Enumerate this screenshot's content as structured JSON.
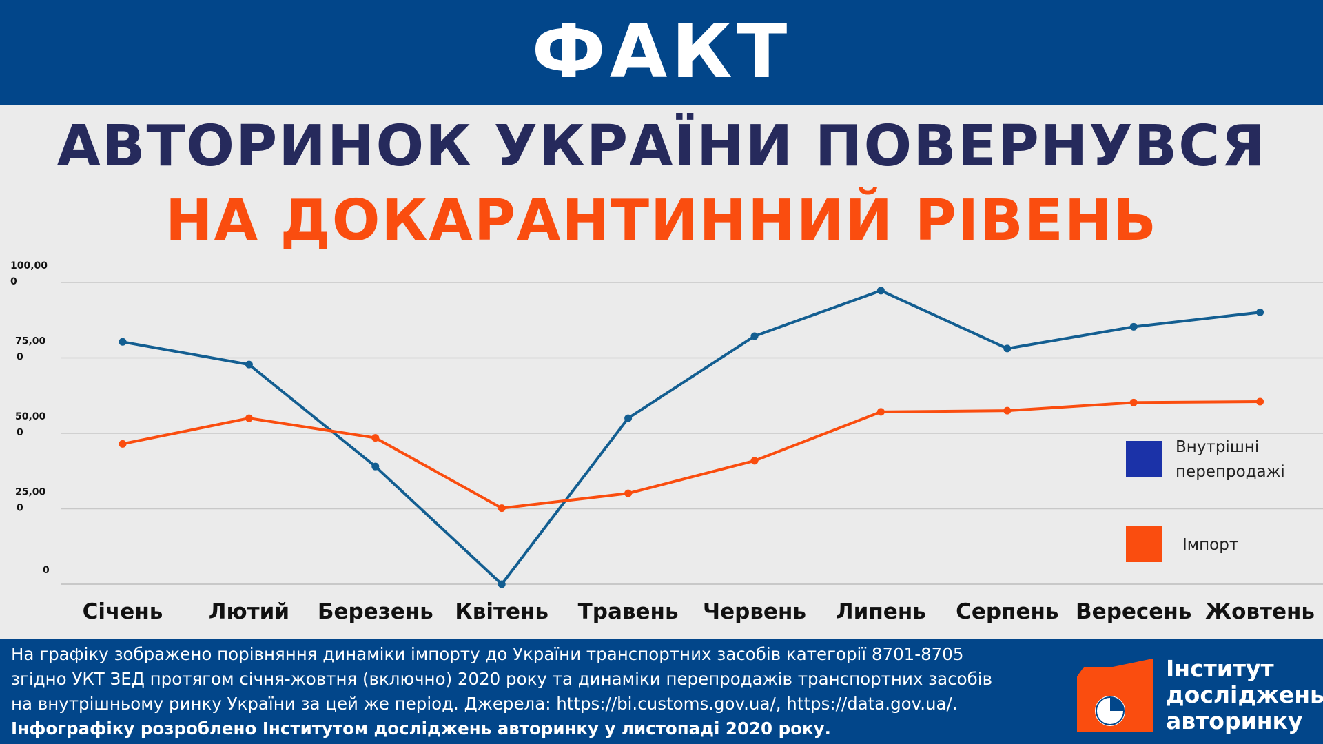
{
  "banner": {
    "title": "ФАКТ"
  },
  "headline": {
    "line1": "АВТОРИНОК УКРАЇНИ ПОВЕРНУВСЯ",
    "line2": "НА ДОКАРАНТИННИЙ РІВЕНЬ"
  },
  "colors": {
    "banner": "#02468a",
    "headline_dark": "#262a5c",
    "accent_orange": "#fa4d0f",
    "series_internal": "#135e91",
    "legend_internal": "#1b32a8",
    "series_import": "#fa4d0f"
  },
  "chart_data": {
    "type": "line",
    "categories": [
      "Січень",
      "Лютий",
      "Березень",
      "Квітень",
      "Травень",
      "Червень",
      "Липень",
      "Серпень",
      "Вересень",
      "Жовтень"
    ],
    "ylim": [
      0,
      100000
    ],
    "yticks": [
      {
        "value": 0,
        "label_top": "",
        "label_bottom": "0"
      },
      {
        "value": 25000,
        "label_top": "25,00",
        "label_bottom": "0"
      },
      {
        "value": 50000,
        "label_top": "50,00",
        "label_bottom": "0"
      },
      {
        "value": 75000,
        "label_top": "75,00",
        "label_bottom": "0"
      },
      {
        "value": 100000,
        "label_top": "100,00",
        "label_bottom": "0"
      }
    ],
    "grid": true,
    "legend_position": "right",
    "series": [
      {
        "name": "Внутрішні перепродажі",
        "legend_lines": [
          "Внутрішні",
          "перепродажі"
        ],
        "values": [
          80300,
          72800,
          39000,
          0,
          55000,
          82200,
          97300,
          78100,
          85300,
          90100
        ]
      },
      {
        "name": "Імпорт",
        "legend_lines": [
          "Імпорт"
        ],
        "values": [
          46500,
          55000,
          48500,
          25200,
          30100,
          40900,
          57100,
          57500,
          60200,
          60500
        ]
      }
    ]
  },
  "footer": {
    "note_lines": [
      "На графіку зображено порівняння динаміки імпорту до України транспортних засобів категорії 8701-8705",
      "згідно УКТ ЗЕД протягом січня-жовтня (включно) 2020 року та динаміки перепродажів транспортних засобів",
      "на внутрішньому ринку України за цей же період. Джерела: https://bi.customs.gov.ua/, https://data.gov.ua/."
    ],
    "credit": "Інфографіку розроблено Інститутом досліджень авторинку у листопаді 2020 року.",
    "logo_lines": [
      "Інститут",
      "досліджень",
      "авторинку"
    ]
  }
}
